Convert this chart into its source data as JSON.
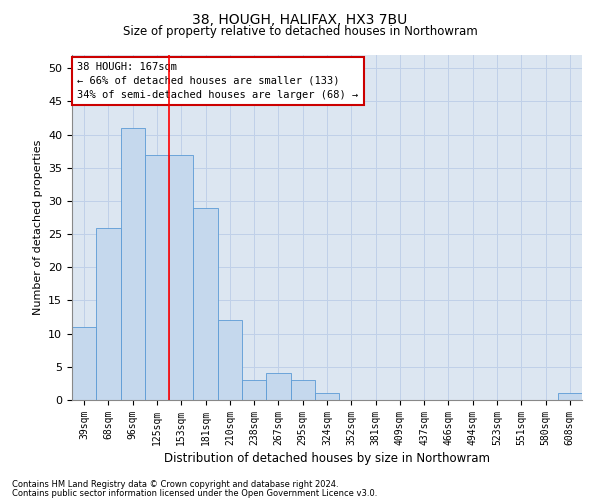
{
  "title1": "38, HOUGH, HALIFAX, HX3 7BU",
  "title2": "Size of property relative to detached houses in Northowram",
  "xlabel": "Distribution of detached houses by size in Northowram",
  "ylabel": "Number of detached properties",
  "footnote1": "Contains HM Land Registry data © Crown copyright and database right 2024.",
  "footnote2": "Contains public sector information licensed under the Open Government Licence v3.0.",
  "bin_labels": [
    "39sqm",
    "68sqm",
    "96sqm",
    "125sqm",
    "153sqm",
    "181sqm",
    "210sqm",
    "238sqm",
    "267sqm",
    "295sqm",
    "324sqm",
    "352sqm",
    "381sqm",
    "409sqm",
    "437sqm",
    "466sqm",
    "494sqm",
    "523sqm",
    "551sqm",
    "580sqm",
    "608sqm"
  ],
  "bar_values": [
    11,
    26,
    41,
    37,
    37,
    29,
    12,
    3,
    4,
    3,
    1,
    0,
    0,
    0,
    0,
    0,
    0,
    0,
    0,
    0,
    1
  ],
  "bar_color": "#c5d8ed",
  "bar_edge_color": "#5b9bd5",
  "grid_color": "#c0d0e8",
  "bg_color": "#dce6f1",
  "annotation_text": "38 HOUGH: 167sqm\n← 66% of detached houses are smaller (133)\n34% of semi-detached houses are larger (68) →",
  "annotation_box_edge": "#cc0000",
  "red_line_bin_index": 4,
  "ylim": [
    0,
    52
  ],
  "yticks": [
    0,
    5,
    10,
    15,
    20,
    25,
    30,
    35,
    40,
    45,
    50
  ],
  "title1_fontsize": 10,
  "title2_fontsize": 8.5,
  "xlabel_fontsize": 8.5,
  "ylabel_fontsize": 8,
  "tick_fontsize": 7,
  "footnote_fontsize": 6,
  "annot_fontsize": 7.5
}
